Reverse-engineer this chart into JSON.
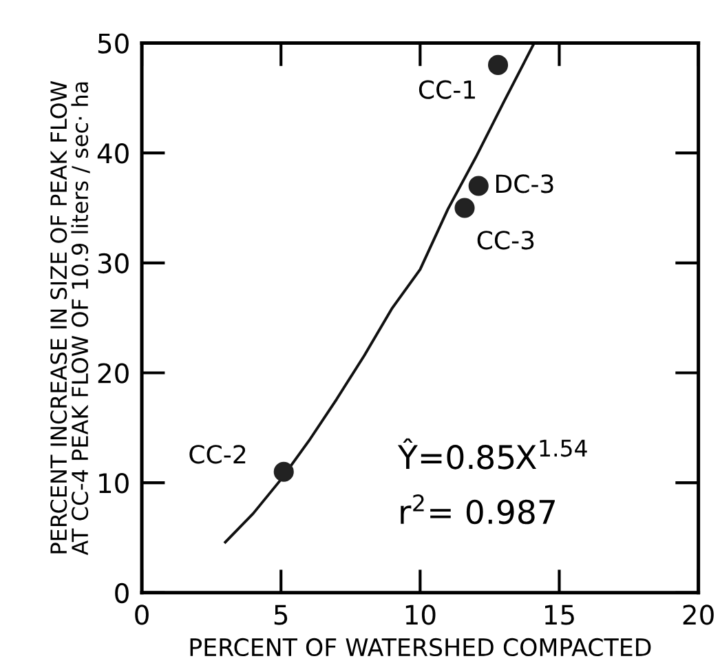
{
  "chart_data": {
    "type": "scatter",
    "xlabel": "PERCENT OF WATERSHED COMPACTED",
    "ylabel": "PERCENT INCREASE IN SIZE OF PEAK FLOW\nAT CC-4 PEAK FLOW OF 10.9 liters / sec· ha",
    "xlim": [
      0,
      20
    ],
    "ylim": [
      0,
      50
    ],
    "xticks": [
      0,
      5,
      10,
      15,
      20
    ],
    "yticks": [
      0,
      10,
      20,
      30,
      40,
      50
    ],
    "grid": false,
    "series": [
      {
        "color": "#222222",
        "marker": "circle",
        "x": [
          12.8,
          12.1,
          11.6,
          5.1
        ],
        "values": [
          48,
          37,
          35,
          11
        ]
      },
      {
        "type": "line",
        "color": "#111111",
        "line_style": "solid",
        "marker": "none",
        "x": [
          3,
          4,
          5,
          6,
          7,
          8,
          9,
          10,
          11,
          12,
          13,
          14.1
        ],
        "values": [
          4.6,
          7.2,
          10.3,
          13.8,
          17.6,
          21.6,
          25.9,
          29.4,
          34.9,
          39.6,
          44.6,
          50
        ]
      }
    ],
    "annotations": [
      {
        "text": "CC-1",
        "x": 12.8,
        "y": 48
      },
      {
        "text": "DC-3",
        "x": 12.1,
        "y": 37
      },
      {
        "text": "CC-3",
        "x": 11.6,
        "y": 35
      },
      {
        "text": "CC-2",
        "x": 5.1,
        "y": 11
      },
      "Ŷ=0.85X$^{1.54}$",
      "r$^{2}$= 0.987"
    ]
  }
}
